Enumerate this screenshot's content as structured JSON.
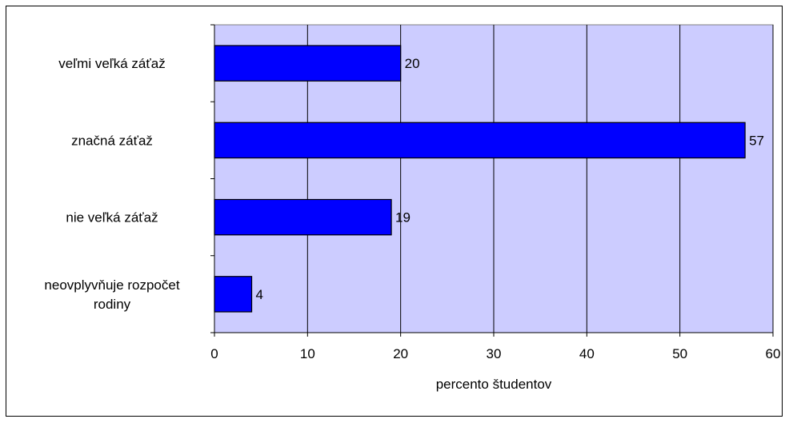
{
  "chart_data": {
    "type": "bar",
    "orientation": "horizontal",
    "categories": [
      [
        "veľmi veľká záťaž"
      ],
      [
        "značná záťaž"
      ],
      [
        "nie veľká záťaž"
      ],
      [
        "neovplyvňuje rozpočet",
        "rodiny"
      ]
    ],
    "values": [
      20,
      57,
      19,
      4
    ],
    "xlabel": "percento študentov",
    "ylabel": "",
    "xlim": [
      0,
      60
    ],
    "xticks": [
      0,
      10,
      20,
      30,
      40,
      50,
      60
    ],
    "grid": "vertical",
    "colors": {
      "bar_fill": "#0000ff",
      "bar_stroke": "#000000",
      "plot_background": "#ccccff",
      "gridline": "#000000"
    }
  }
}
